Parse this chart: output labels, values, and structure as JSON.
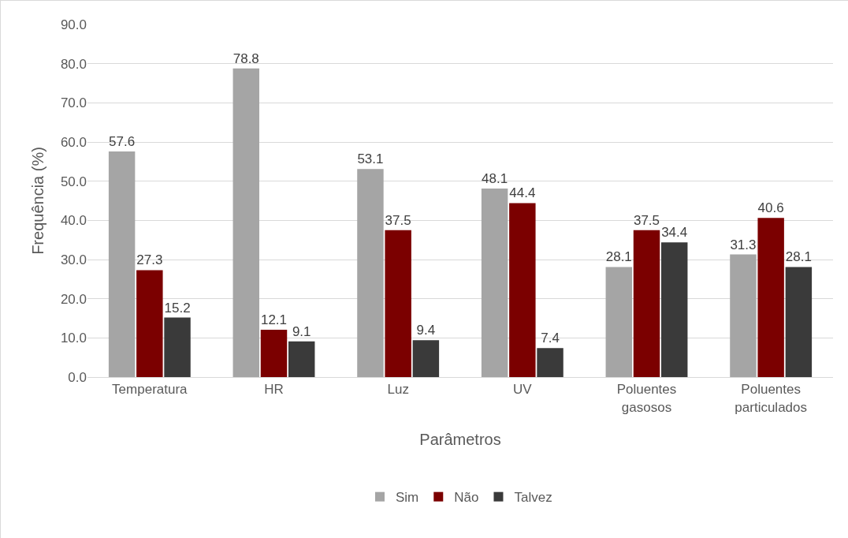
{
  "chart_data": {
    "type": "bar",
    "xlabel": "Parâmetros",
    "ylabel": "Frequência (%)",
    "categories": [
      "Temperatura",
      "HR",
      "Luz",
      "UV",
      "Poluentes gasosos",
      "Poluentes particulados"
    ],
    "series": [
      {
        "name": "Sim",
        "color": "#a5a5a5",
        "values": [
          57.6,
          78.8,
          53.1,
          48.1,
          28.1,
          31.3
        ]
      },
      {
        "name": "Não",
        "color": "#7b0000",
        "values": [
          27.3,
          12.1,
          37.5,
          44.4,
          37.5,
          40.6
        ]
      },
      {
        "name": "Talvez",
        "color": "#3a3a3a",
        "values": [
          15.2,
          9.1,
          9.4,
          7.4,
          34.4,
          28.1
        ]
      }
    ],
    "ylim": [
      0,
      90
    ],
    "yticks": [
      {
        "value": 0,
        "label": "0.0"
      },
      {
        "value": 10,
        "label": "10.0"
      },
      {
        "value": 20,
        "label": "20.0"
      },
      {
        "value": 30,
        "label": "30.0"
      },
      {
        "value": 40,
        "label": "40.0"
      },
      {
        "value": 50,
        "label": "50.0"
      },
      {
        "value": 60,
        "label": "60.0"
      },
      {
        "value": 70,
        "label": "70.0"
      },
      {
        "value": 80,
        "label": "80.0"
      },
      {
        "value": 90,
        "label": "90.0"
      }
    ],
    "grid": "y",
    "legend": "bottom",
    "data_labels": true
  }
}
